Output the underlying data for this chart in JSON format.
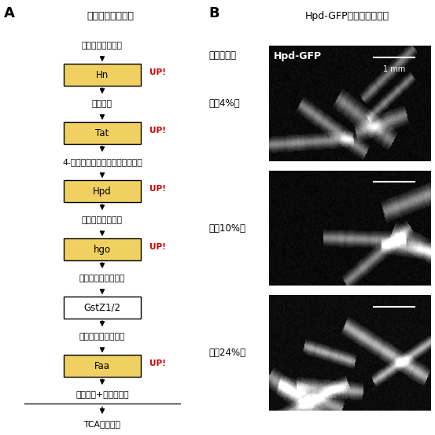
{
  "panel_a_title": "チロシン分解経路",
  "panel_b_title": "Hpd-GFPレポーター幼虫",
  "pathway": [
    {
      "label": "フェニルアラニン",
      "box": false,
      "up": false
    },
    {
      "label": "Hn",
      "box": true,
      "up": true,
      "color": "#F0D060"
    },
    {
      "label": "チロシン",
      "box": false,
      "up": false
    },
    {
      "label": "Tat",
      "box": true,
      "up": true,
      "color": "#F0D060"
    },
    {
      "label": "4-ヒドロキシフェニルピルビン酸",
      "box": false,
      "up": false
    },
    {
      "label": "Hpd",
      "box": true,
      "up": true,
      "color": "#F0D060"
    },
    {
      "label": "ホモゲンチジン酸",
      "box": false,
      "up": false
    },
    {
      "label": "hgo",
      "box": true,
      "up": true,
      "color": "#F0D060"
    },
    {
      "label": "マレイルアセト酢酸",
      "box": false,
      "up": false
    },
    {
      "label": "GstZ1/2",
      "box": true,
      "up": false,
      "color": "#FFFFFF"
    },
    {
      "label": "フマリルアセト酢酸",
      "box": false,
      "up": false
    },
    {
      "label": "Faa",
      "box": true,
      "up": true,
      "color": "#F0D060"
    },
    {
      "label": "フマル酸+アセト酢酸",
      "box": false,
      "up": false,
      "underline": true
    },
    {
      "label": "TCAサイクル",
      "box": false,
      "up": false
    }
  ],
  "right_labels_left": [
    "タンパク質",
    "低（4%）",
    "中（10%）",
    "高（24%）"
  ],
  "image_label": "Hpd-GFP",
  "scale_bar_text": "1 mm",
  "background": "#FFFFFF",
  "box_edge_color": "#000000",
  "up_color": "#CC0000",
  "text_color": "#000000",
  "label_A": "A",
  "label_B": "B",
  "fig_width": 5.53,
  "fig_height": 5.53,
  "fig_dpi": 100
}
